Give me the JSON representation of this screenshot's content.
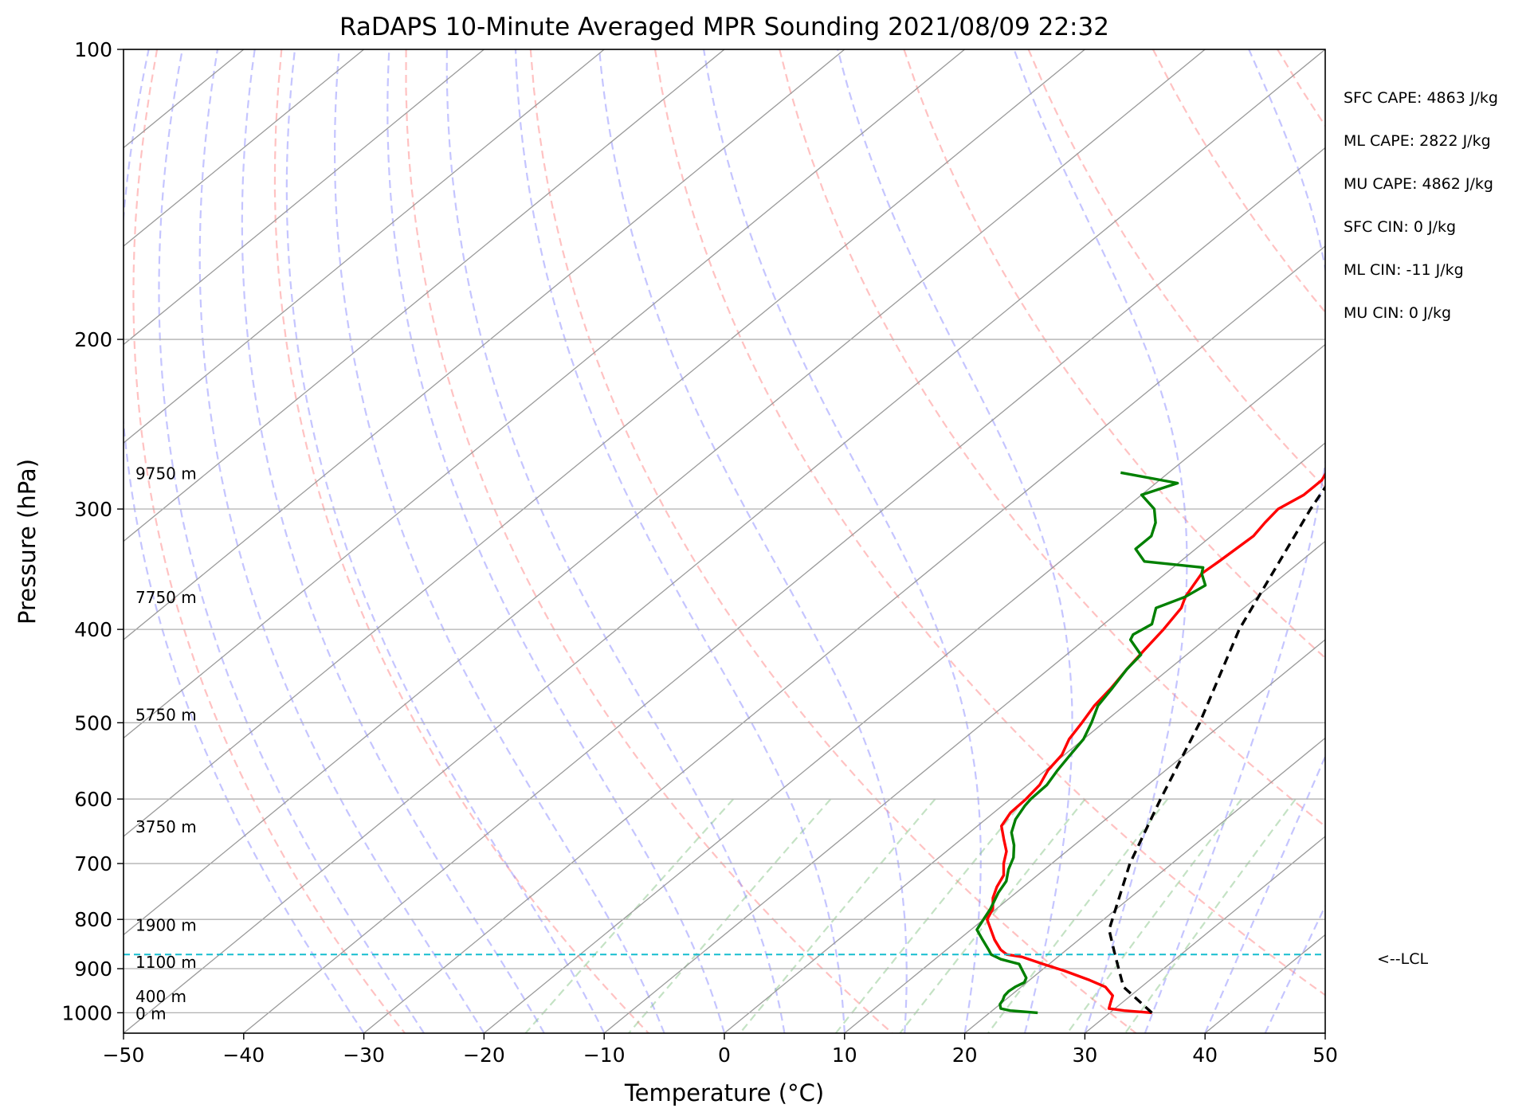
{
  "chart_data": {
    "type": "line",
    "title": "RaDAPS 10-Minute Averaged MPR Sounding 2021/08/09 22:32",
    "xlabel": "Temperature (°C)",
    "ylabel": "Pressure (hPa)",
    "xlim": [
      -50,
      50
    ],
    "ylim": [
      1050,
      100
    ],
    "y_scale": "log",
    "x_ticks": [
      -50,
      -40,
      -30,
      -20,
      -10,
      0,
      10,
      20,
      30,
      40,
      50
    ],
    "x_tick_labels": [
      "−50",
      "−40",
      "−30",
      "−20",
      "−10",
      "0",
      "10",
      "20",
      "30",
      "40",
      "50"
    ],
    "y_ticks": [
      100,
      200,
      300,
      400,
      500,
      600,
      700,
      800,
      900,
      1000
    ],
    "grid": "horizontal",
    "background_lines": [
      "skewed isotherms",
      "dry adiabats",
      "moist adiabats",
      "mixing ratio lines"
    ],
    "lcl_pressure": 870,
    "lcl_label": "<--LCL",
    "height_labels": [
      {
        "text": "0 m",
        "p": 1000
      },
      {
        "text": "400 m",
        "p": 960
      },
      {
        "text": "1100 m",
        "p": 885
      },
      {
        "text": "1900 m",
        "p": 810
      },
      {
        "text": "3750 m",
        "p": 640
      },
      {
        "text": "5750 m",
        "p": 490
      },
      {
        "text": "7750 m",
        "p": 370
      },
      {
        "text": "9750 m",
        "p": 275
      }
    ],
    "stats": [
      "SFC CAPE: 4863 J/kg",
      "ML CAPE: 2822 J/kg",
      "MU CAPE: 4862 J/kg",
      "SFC CIN: 0 J/kg",
      "ML CIN: -11 J/kg",
      "MU CIN: 0 J/kg"
    ],
    "series": [
      {
        "color": "#ff0000",
        "values": [
          [
            1000,
            33.5
          ],
          [
            995,
            31
          ],
          [
            990,
            29.5
          ],
          [
            975,
            29
          ],
          [
            960,
            28.5
          ],
          [
            940,
            27
          ],
          [
            925,
            25
          ],
          [
            905,
            22
          ],
          [
            890,
            19.5
          ],
          [
            875,
            17
          ],
          [
            870,
            15.5
          ],
          [
            860,
            14.5
          ],
          [
            840,
            13
          ],
          [
            800,
            10.3
          ],
          [
            780,
            9.7
          ],
          [
            760,
            8.6
          ],
          [
            740,
            7.8
          ],
          [
            720,
            7.2
          ],
          [
            700,
            6
          ],
          [
            680,
            5
          ],
          [
            660,
            3.5
          ],
          [
            640,
            2
          ],
          [
            620,
            1.4
          ],
          [
            600,
            1.3
          ],
          [
            580,
            1
          ],
          [
            560,
            0.2
          ],
          [
            540,
            -0.2
          ],
          [
            520,
            -1.2
          ],
          [
            500,
            -1.8
          ],
          [
            480,
            -2.5
          ],
          [
            460,
            -2.9
          ],
          [
            440,
            -3.5
          ],
          [
            420,
            -4
          ],
          [
            400,
            -4.5
          ],
          [
            380,
            -5.2
          ],
          [
            370,
            -6
          ],
          [
            360,
            -6.5
          ],
          [
            350,
            -7
          ],
          [
            340,
            -6.8
          ],
          [
            320,
            -6.5
          ],
          [
            310,
            -6.9
          ],
          [
            300,
            -7.2
          ],
          [
            290,
            -6.5
          ],
          [
            280,
            -6.5
          ],
          [
            270,
            -7.3
          ]
        ]
      },
      {
        "color": "#008000",
        "values": [
          [
            1000,
            24
          ],
          [
            995,
            21.5
          ],
          [
            990,
            20.5
          ],
          [
            980,
            20
          ],
          [
            970,
            19.8
          ],
          [
            960,
            19.5
          ],
          [
            950,
            19.4
          ],
          [
            940,
            19.5
          ],
          [
            930,
            19.8
          ],
          [
            920,
            19.5
          ],
          [
            905,
            18.5
          ],
          [
            890,
            17.5
          ],
          [
            880,
            15.5
          ],
          [
            870,
            14.2
          ],
          [
            860,
            13.5
          ],
          [
            840,
            12
          ],
          [
            820,
            10.5
          ],
          [
            800,
            10
          ],
          [
            780,
            9.5
          ],
          [
            750,
            8.5
          ],
          [
            730,
            8
          ],
          [
            710,
            7
          ],
          [
            690,
            6.2
          ],
          [
            670,
            5
          ],
          [
            650,
            3.5
          ],
          [
            630,
            2.5
          ],
          [
            610,
            1.9
          ],
          [
            600,
            1.7
          ],
          [
            580,
            1.6
          ],
          [
            560,
            1
          ],
          [
            540,
            0.5
          ],
          [
            520,
            0
          ],
          [
            500,
            -1
          ],
          [
            480,
            -2.2
          ],
          [
            460,
            -2.8
          ],
          [
            440,
            -3.5
          ],
          [
            425,
            -3.8
          ],
          [
            410,
            -6.2
          ],
          [
            405,
            -6.5
          ],
          [
            395,
            -6
          ],
          [
            380,
            -7.3
          ],
          [
            370,
            -6
          ],
          [
            360,
            -5.5
          ],
          [
            350,
            -7
          ],
          [
            345,
            -7.5
          ],
          [
            340,
            -13
          ],
          [
            330,
            -15
          ],
          [
            320,
            -15
          ],
          [
            310,
            -16
          ],
          [
            300,
            -17.5
          ],
          [
            290,
            -20
          ],
          [
            282,
            -18.2
          ],
          [
            275,
            -24
          ]
        ]
      },
      {
        "color": "#000000",
        "dashed": true,
        "values": [
          [
            1000,
            33.5
          ],
          [
            940,
            28.5
          ],
          [
            870,
            24.5
          ],
          [
            820,
            21.5
          ],
          [
            700,
            16.5
          ],
          [
            600,
            12.5
          ],
          [
            500,
            8
          ],
          [
            400,
            1.8
          ],
          [
            300,
            -4.5
          ],
          [
            270,
            -6.5
          ]
        ]
      }
    ]
  }
}
